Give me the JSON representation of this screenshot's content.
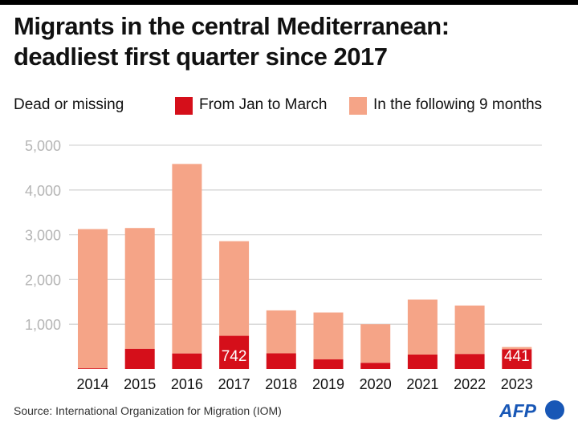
{
  "title": [
    "Migrants in the central Mediterranean:",
    "deadliest first quarter since 2017"
  ],
  "logo": "AFP",
  "source": "Source: International Organization for Migration (IOM)",
  "colors": {
    "q1": "#d50f1a",
    "rest": "#f5a487",
    "grid": "#d6d6d6",
    "axis_text": "#b5b5b5",
    "logo": "#1857b6"
  },
  "chart_data": {
    "type": "bar",
    "stacked": true,
    "title": "Migrants in the central Mediterranean: deadliest first quarter since 2017",
    "ylabel": "Dead or missing",
    "xlabel": "",
    "categories": [
      "2014",
      "2015",
      "2016",
      "2017",
      "2018",
      "2019",
      "2020",
      "2021",
      "2022",
      "2023"
    ],
    "series": [
      {
        "name": "From Jan to March",
        "values": [
          15,
          450,
          347,
          742,
          350,
          216,
          138,
          323,
          335,
          441
        ]
      },
      {
        "name": "In the following 9 months",
        "values": [
          3111,
          2700,
          4234,
          2114,
          960,
          1047,
          862,
          1228,
          1084,
          50
        ]
      }
    ],
    "data_labels": [
      {
        "category": "2017",
        "value": "742"
      },
      {
        "category": "2023",
        "value": "441"
      }
    ],
    "ylim": [
      0,
      5000
    ],
    "yticks": [
      1000,
      2000,
      3000,
      4000,
      5000
    ],
    "ytick_labels": [
      "1,000",
      "2,000",
      "3,000",
      "4,000",
      "5,000"
    ],
    "grid": true,
    "legend": "top"
  }
}
